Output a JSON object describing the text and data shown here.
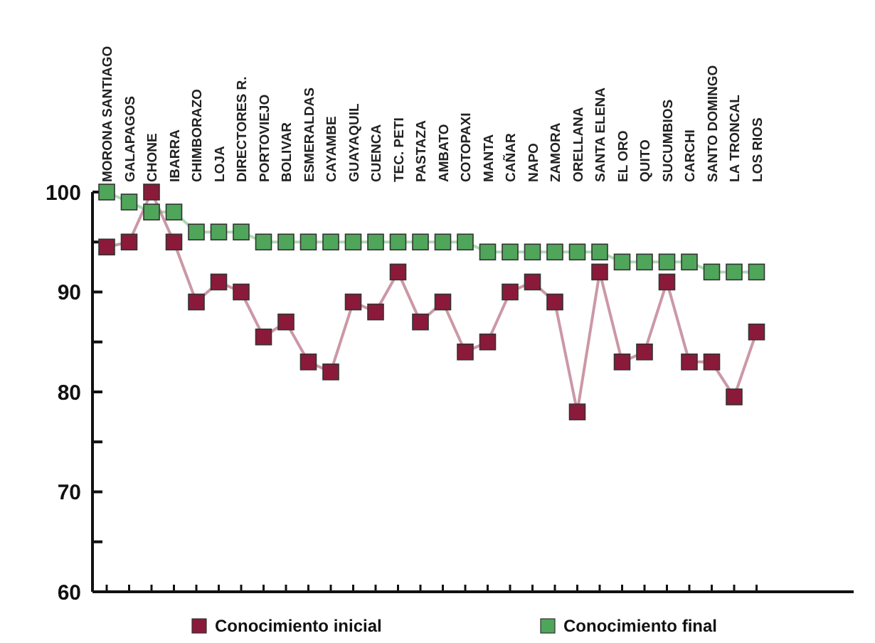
{
  "chart_data": {
    "type": "line",
    "categories": [
      "MORONA SANTIAGO",
      "GALAPAGOS",
      "CHONE",
      "IBARRA",
      "CHIMBORAZO",
      "LOJA",
      "DIRECTORES R.",
      "PORTOVIEJO",
      "BOLIVAR",
      "ESMERALDAS",
      "CAYAMBE",
      "GUAYAQUIL",
      "CUENCA",
      "TEC. PETI",
      "PASTAZA",
      "AMBATO",
      "COTOPAXI",
      "MANTA",
      "CAÑAR",
      "NAPO",
      "ZAMORA",
      "ORELLANA",
      "SANTA ELENA",
      "EL ORO",
      "QUITO",
      "SUCUMBIOS",
      "CARCHI",
      "SANTO DOMINGO",
      "LA TRONCAL",
      "LOS RIOS"
    ],
    "series": [
      {
        "name": "Conocimiento inicial",
        "color": "#8b1a3a",
        "values": [
          94.5,
          95,
          100,
          95,
          89,
          91,
          90,
          85.5,
          87,
          83,
          82,
          89,
          88,
          92,
          87,
          89,
          84,
          85,
          90,
          91,
          89,
          78,
          92,
          83,
          84,
          91,
          83,
          83,
          79.5,
          86
        ]
      },
      {
        "name": "Conocimiento final",
        "color": "#4fa65a",
        "values": [
          100,
          99,
          98,
          98,
          96,
          96,
          96,
          95,
          95,
          95,
          95,
          95,
          95,
          95,
          95,
          95,
          95,
          94,
          94,
          94,
          94,
          94,
          94,
          93,
          93,
          93,
          93,
          92,
          92,
          92
        ]
      }
    ],
    "ylim": [
      60,
      100
    ],
    "yticks": [
      60,
      {
        "value": 65,
        "label": null
      },
      70,
      {
        "value": 75,
        "label": null
      },
      80,
      {
        "value": 85,
        "label": null
      },
      90,
      {
        "value": 95,
        "label": null
      },
      100
    ],
    "marker": "square",
    "legend": "bottom"
  }
}
